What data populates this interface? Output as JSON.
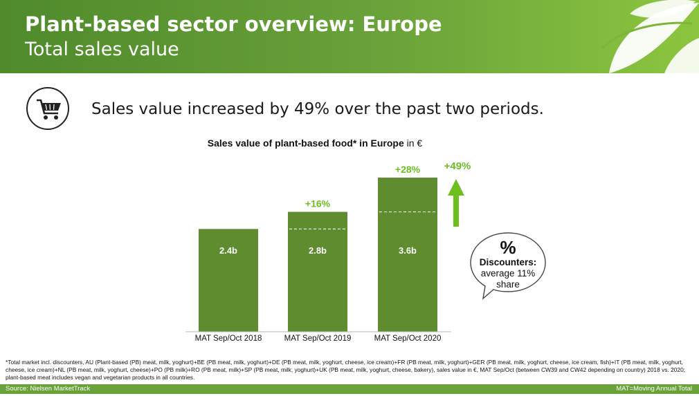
{
  "header": {
    "title": "Plant-based sector overview: Europe",
    "subtitle": "Total sales value"
  },
  "icons": {
    "cart": "shopping-cart-icon",
    "arrow": "arrow-up-icon",
    "bubble": "speech-bubble-icon"
  },
  "headline": "Sales value increased by 49% over the past two periods.",
  "colors": {
    "header_dark": "#4f8a2b",
    "header_light": "#8cc63f",
    "bar": "#5e8c2e",
    "growth_label": "#6cbf1f",
    "arrow": "#6cbf1f"
  },
  "chart_data": {
    "type": "bar",
    "title_bold": "Sales value of plant-based food* in Europe",
    "title_unit": "in €",
    "categories": [
      "MAT Sep/Oct 2018",
      "MAT Sep/Oct 2019",
      "MAT Sep/Oct 2020"
    ],
    "values": [
      2.4,
      2.8,
      3.6
    ],
    "value_labels": [
      "2.4b",
      "2.8b",
      "3.6b"
    ],
    "growth_labels": [
      "",
      "+16%",
      "+28%"
    ],
    "total_growth_label": "+49%",
    "ylim": [
      0,
      3.6
    ],
    "grid": false,
    "legend": "none"
  },
  "bubble": {
    "symbol": "%",
    "heading": "Discounters:",
    "line1": "average 11%",
    "line2": "share"
  },
  "footnote": "*Total market incl. discounters, AU (Plant-based (PB) meat, milk, yoghurt)+BE (PB meat, milk, yoghurt)+DE (PB meat, milk, yoghurt, cheese, ice cream)+FR (PB meat, milk, yoghurt)+GER (PB meat, milk, yoghurt, cheese, ice cream, fish)+IT (PB meat, milk, yoghurt, cheese, ice cream)+NL (PB meat, milk, yoghurt, cheese)+PO (PB milk)+RO (PB meat, milk)+SP (PB meat, milk, yoghurt)+UK (PB meat, milk, yoghurt, cheese, bakery), sales value in €, MAT Sep/Oct (between CW39 and CW42 depending on country) 2018 vs. 2020; plant-based meat includes vegan and vegetarian products in all countries.",
  "source": "Source: Nielsen MarketTrack",
  "mat_note": "MAT=Moving Annual Total"
}
